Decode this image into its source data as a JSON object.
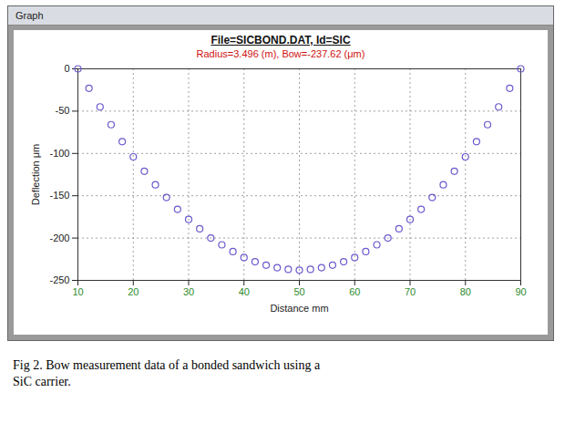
{
  "chart_data": {
    "type": "scatter",
    "window_title": "Graph",
    "title": "File=SICBOND.DAT, Id=SIC",
    "subtitle": "Radius=3.496 (m), Bow=-237.62 (μm)",
    "caption": "Fig 2. Bow measurement data of a bonded sandwich using a SiC carrier.",
    "x_label": "Distance mm",
    "y_label": "Deflection μm",
    "x": [
      10,
      12,
      14,
      16,
      18,
      20,
      22,
      24,
      26,
      28,
      30,
      32,
      34,
      36,
      38,
      40,
      42,
      44,
      46,
      48,
      50,
      52,
      54,
      56,
      58,
      60,
      62,
      64,
      66,
      68,
      70,
      72,
      74,
      76,
      78,
      80,
      82,
      84,
      86,
      88,
      90
    ],
    "values": [
      0,
      -23,
      -45,
      -66,
      -86,
      -104,
      -121,
      -137,
      -152,
      -166,
      -178,
      -189,
      -200,
      -208,
      -216,
      -223,
      -228,
      -232,
      -235,
      -237,
      -238,
      -237,
      -235,
      -232,
      -228,
      -223,
      -216,
      -208,
      -200,
      -189,
      -178,
      -166,
      -152,
      -137,
      -121,
      -104,
      -86,
      -66,
      -45,
      -23,
      0
    ],
    "color": "#6a5acd",
    "marker": "circle",
    "xlim": [
      10,
      90
    ],
    "ylim": [
      -250,
      0
    ],
    "xticks": [
      10,
      20,
      30,
      40,
      50,
      60,
      70,
      80,
      90
    ],
    "yticks": [
      0,
      -50,
      -100,
      -150,
      -200,
      -250
    ],
    "grid": true
  }
}
